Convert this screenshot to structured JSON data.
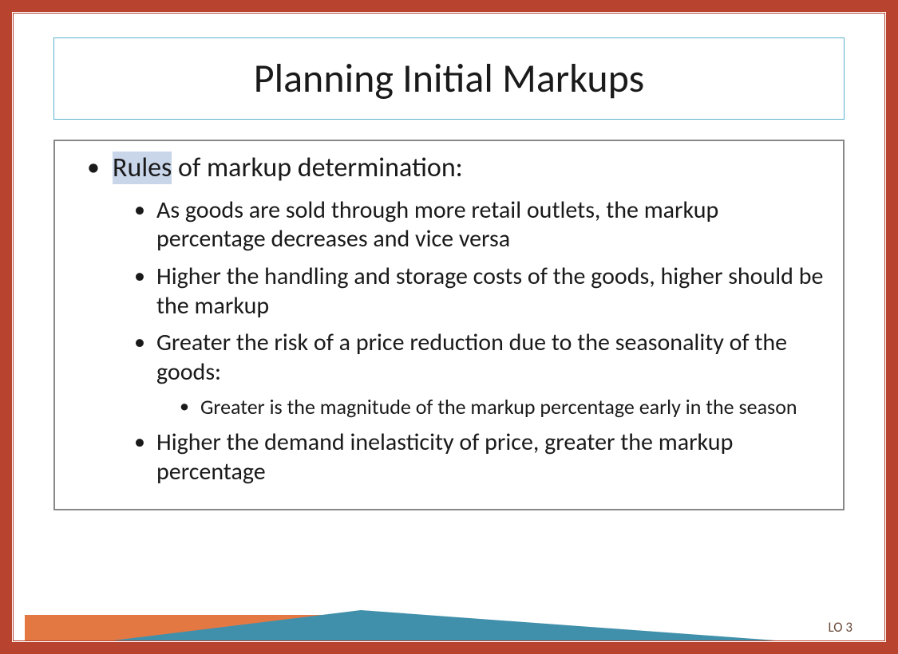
{
  "title": "Planning Initial Markups",
  "main_bullet": {
    "highlighted": "Rules",
    "rest": " of markup determination:"
  },
  "sub_bullets": [
    {
      "text": "As goods are sold through more retail outlets, the markup percentage decreases and vice versa"
    },
    {
      "text": "Higher the handling and storage costs of the goods, higher should be the markup"
    },
    {
      "text": "Greater the risk of a price reduction due to the seasonality of the goods:",
      "sub": [
        "Greater is the magnitude of the markup percentage early in the season"
      ]
    },
    {
      "text": "Higher the demand inelasticity of price, greater the markup percentage"
    }
  ],
  "footer_label": "LO 3",
  "colors": {
    "outer_border": "#b8432f",
    "title_border": "#5cb3cc",
    "content_border": "#888888",
    "highlight_bg": "#c9d5e8",
    "footer_orange": "#e47843",
    "footer_blue": "#4190ab",
    "footer_text": "#6b4a3a",
    "text": "#1a1a1a"
  },
  "typography": {
    "title_fontsize": 50,
    "level1_fontsize": 34,
    "level2_fontsize": 30,
    "level3_fontsize": 26,
    "footer_fontsize": 17,
    "font_family": "Calibri"
  }
}
